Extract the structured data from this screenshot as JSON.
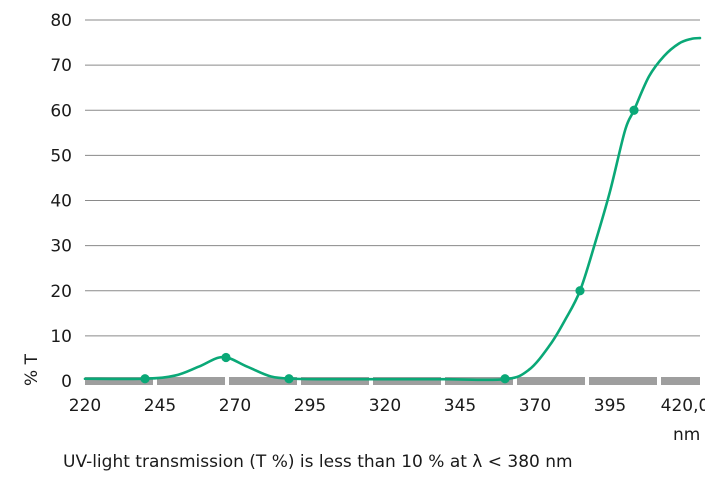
{
  "caption": "UV-light transmission (T %) is less than 10 % at λ < 380 nm",
  "chart_data": {
    "type": "line",
    "xlabel": "nm",
    "ylabel": "% T",
    "x_ticks": [
      "220",
      "245",
      "270",
      "295",
      "320",
      "345",
      "370",
      "395",
      "420,0"
    ],
    "y_ticks": [
      "0",
      "10",
      "20",
      "30",
      "40",
      "50",
      "60",
      "70",
      "80"
    ],
    "xlim": [
      220,
      425
    ],
    "ylim": [
      0,
      80
    ],
    "grid": "horizontal",
    "legend": "none",
    "line_color": "#0aa877",
    "grid_color": "#8a8a8a",
    "axis_color": "#9e9e9e",
    "series": [
      {
        "curve_x": [
          220,
          240,
          250,
          258,
          266,
          274,
          282,
          290,
          300,
          320,
          340,
          360,
          368,
          375,
          380,
          385,
          390,
          395,
          400,
          403,
          408,
          413,
          418,
          422,
          425
        ],
        "curve_y": [
          0.5,
          0.5,
          1.2,
          3.2,
          5.3,
          3.2,
          1.0,
          0.5,
          0.4,
          0.4,
          0.4,
          0.4,
          2.5,
          8.0,
          13.5,
          20.0,
          30.5,
          42.0,
          55.5,
          60.0,
          67.5,
          72.0,
          74.8,
          75.8,
          76.0
        ],
        "marker_x": [
          240,
          267,
          288,
          360,
          385,
          403
        ],
        "marker_y": [
          0.5,
          5.2,
          0.5,
          0.5,
          20,
          60
        ]
      }
    ]
  }
}
